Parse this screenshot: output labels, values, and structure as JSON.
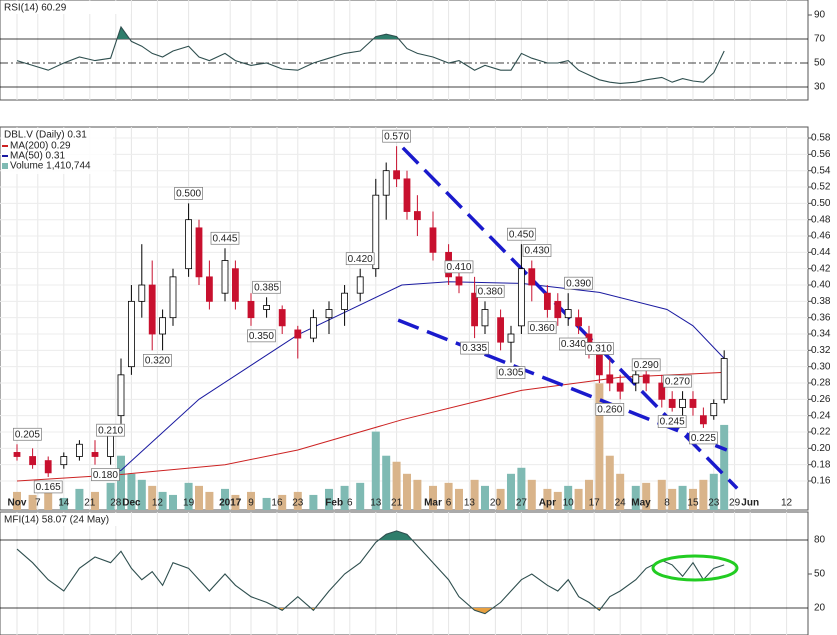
{
  "chart_data": [
    {
      "type": "line",
      "title": "RSI(14) 60.29",
      "color": "#2f4f4f",
      "x": [
        0,
        3,
        6,
        9,
        12,
        15,
        18,
        20,
        22,
        24,
        26,
        28,
        30,
        33,
        35,
        37,
        40,
        42,
        45,
        48,
        51,
        54,
        57,
        60,
        63,
        66,
        69,
        71,
        73,
        75,
        77,
        80,
        83,
        85,
        88,
        90,
        93,
        95,
        97,
        99,
        102,
        104,
        106,
        108,
        110,
        112,
        114,
        116,
        119,
        121,
        124,
        126,
        128,
        130,
        132,
        134,
        136
      ],
      "values": [
        52,
        48,
        44,
        50,
        55,
        52,
        54,
        80,
        68,
        64,
        58,
        55,
        60,
        64,
        55,
        52,
        58,
        52,
        48,
        50,
        45,
        44,
        50,
        54,
        58,
        60,
        72,
        74,
        72,
        62,
        58,
        55,
        50,
        52,
        44,
        48,
        44,
        44,
        58,
        54,
        50,
        50,
        52,
        44,
        40,
        36,
        34,
        33,
        34,
        36,
        38,
        34,
        37,
        35,
        34,
        42,
        60
      ],
      "ylim": [
        19.2,
        102.5
      ],
      "yticks": [
        90,
        70,
        50,
        30
      ],
      "overbought": 70,
      "oversold": 30,
      "dashed_mid": true,
      "over_color": "#2e7d6b",
      "under_color": "#e8a040"
    },
    {
      "type": "candlestick",
      "title": "DBL.V (Daily) 0.31",
      "x": [
        0,
        3,
        6,
        9,
        12,
        15,
        18,
        20,
        22,
        24,
        26,
        28,
        30,
        33,
        35,
        37,
        40,
        42,
        45,
        48,
        51,
        54,
        57,
        60,
        63,
        66,
        69,
        71,
        73,
        75,
        77,
        80,
        83,
        85,
        88,
        90,
        93,
        95,
        97,
        99,
        102,
        104,
        106,
        108,
        110,
        112,
        114,
        116,
        119,
        121,
        124,
        126,
        128,
        130,
        132,
        134,
        136
      ],
      "open": [
        0.195,
        0.19,
        0.185,
        0.18,
        0.19,
        0.195,
        0.19,
        0.24,
        0.3,
        0.38,
        0.4,
        0.34,
        0.36,
        0.42,
        0.47,
        0.41,
        0.39,
        0.42,
        0.38,
        0.37,
        0.37,
        0.345,
        0.335,
        0.36,
        0.37,
        0.39,
        0.42,
        0.51,
        0.54,
        0.53,
        0.49,
        0.47,
        0.44,
        0.41,
        0.39,
        0.35,
        0.36,
        0.33,
        0.35,
        0.42,
        0.39,
        0.38,
        0.36,
        0.36,
        0.34,
        0.32,
        0.29,
        0.28,
        0.28,
        0.29,
        0.28,
        0.26,
        0.25,
        0.26,
        0.24,
        0.24,
        0.26
      ],
      "high": [
        0.205,
        0.2,
        0.19,
        0.195,
        0.21,
        0.21,
        0.22,
        0.31,
        0.4,
        0.45,
        0.43,
        0.37,
        0.42,
        0.5,
        0.48,
        0.43,
        0.445,
        0.43,
        0.39,
        0.385,
        0.375,
        0.35,
        0.37,
        0.38,
        0.4,
        0.42,
        0.53,
        0.55,
        0.57,
        0.54,
        0.51,
        0.49,
        0.45,
        0.42,
        0.41,
        0.38,
        0.37,
        0.35,
        0.45,
        0.43,
        0.4,
        0.39,
        0.39,
        0.37,
        0.35,
        0.33,
        0.31,
        0.29,
        0.3,
        0.3,
        0.29,
        0.27,
        0.27,
        0.27,
        0.25,
        0.26,
        0.32
      ],
      "low": [
        0.185,
        0.175,
        0.165,
        0.175,
        0.185,
        0.18,
        0.18,
        0.23,
        0.29,
        0.36,
        0.32,
        0.32,
        0.35,
        0.41,
        0.4,
        0.37,
        0.38,
        0.37,
        0.35,
        0.36,
        0.34,
        0.31,
        0.33,
        0.34,
        0.35,
        0.38,
        0.41,
        0.48,
        0.52,
        0.48,
        0.46,
        0.43,
        0.4,
        0.39,
        0.335,
        0.34,
        0.32,
        0.305,
        0.34,
        0.38,
        0.36,
        0.35,
        0.35,
        0.34,
        0.31,
        0.28,
        0.27,
        0.26,
        0.27,
        0.27,
        0.25,
        0.245,
        0.24,
        0.24,
        0.225,
        0.235,
        0.255
      ],
      "close": [
        0.19,
        0.18,
        0.17,
        0.19,
        0.205,
        0.19,
        0.215,
        0.29,
        0.38,
        0.4,
        0.34,
        0.36,
        0.41,
        0.48,
        0.41,
        0.38,
        0.43,
        0.38,
        0.36,
        0.375,
        0.35,
        0.335,
        0.36,
        0.37,
        0.39,
        0.41,
        0.51,
        0.54,
        0.53,
        0.49,
        0.48,
        0.44,
        0.41,
        0.4,
        0.35,
        0.37,
        0.33,
        0.34,
        0.42,
        0.4,
        0.37,
        0.36,
        0.37,
        0.35,
        0.32,
        0.29,
        0.28,
        0.27,
        0.29,
        0.28,
        0.26,
        0.25,
        0.26,
        0.25,
        0.23,
        0.255,
        0.31
      ],
      "up_color": "#000000",
      "down_color": "#c8102e",
      "series": [
        {
          "name": "MA(200) 0.29",
          "color": "#cc2222",
          "x": [
            0,
            20,
            40,
            54,
            74,
            97,
            116,
            136
          ],
          "values": [
            0.16,
            0.168,
            0.18,
            0.198,
            0.235,
            0.271,
            0.287,
            0.293
          ]
        },
        {
          "name": "MA(50) 0.31",
          "color": "#1a1aa0",
          "x": [
            16,
            20,
            35,
            54,
            74,
            83,
            97,
            112,
            125,
            130,
            136
          ],
          "values": [
            0.167,
            0.173,
            0.26,
            0.339,
            0.4,
            0.404,
            0.402,
            0.391,
            0.37,
            0.35,
            0.31
          ]
        }
      ],
      "volume": {
        "name": "Volume 1,410,744",
        "lim": [
          0,
          6350000
        ],
        "up_color": "#7fbab3",
        "down_color": "#d9b48a",
        "values": [
          300000,
          250000,
          400000,
          200000,
          350000,
          300000,
          450000,
          900000,
          600000,
          500000,
          400000,
          300000,
          250000,
          450000,
          400000,
          300000,
          350000,
          250000,
          300000,
          200000,
          250000,
          300000,
          250000,
          350000,
          400000,
          450000,
          1300000,
          900000,
          800000,
          600000,
          500000,
          400000,
          450000,
          350000,
          500000,
          400000,
          350000,
          600000,
          700000,
          500000,
          350000,
          300000,
          400000,
          350000,
          500000,
          2100000,
          900000,
          600000,
          400000,
          450000,
          500000,
          350000,
          400000,
          350000,
          500000,
          600000,
          1410744
        ]
      },
      "annotations": [
        {
          "x": 2,
          "value": 0.205,
          "label": "0.205",
          "pos": "above"
        },
        {
          "x": 6,
          "value": 0.165,
          "label": "0.165",
          "pos": "below"
        },
        {
          "x": 18,
          "value": 0.21,
          "label": "0.210",
          "pos": "above"
        },
        {
          "x": 17,
          "value": 0.18,
          "label": "0.180",
          "pos": "below"
        },
        {
          "x": 27,
          "value": 0.32,
          "label": "0.320",
          "pos": "below"
        },
        {
          "x": 33,
          "value": 0.5,
          "label": "0.500",
          "pos": "above"
        },
        {
          "x": 40,
          "value": 0.445,
          "label": "0.445",
          "pos": "above"
        },
        {
          "x": 47,
          "value": 0.35,
          "label": "0.350",
          "pos": "below"
        },
        {
          "x": 48,
          "value": 0.385,
          "label": "0.385",
          "pos": "above"
        },
        {
          "x": 66,
          "value": 0.42,
          "label": "0.420",
          "pos": "above"
        },
        {
          "x": 73,
          "value": 0.57,
          "label": "0.570",
          "pos": "above"
        },
        {
          "x": 85,
          "value": 0.41,
          "label": "0.410",
          "pos": "above"
        },
        {
          "x": 88,
          "value": 0.335,
          "label": "0.335",
          "pos": "below"
        },
        {
          "x": 91,
          "value": 0.38,
          "label": "0.380",
          "pos": "above"
        },
        {
          "x": 95,
          "value": 0.305,
          "label": "0.305",
          "pos": "below"
        },
        {
          "x": 97,
          "value": 0.45,
          "label": "0.450",
          "pos": "above"
        },
        {
          "x": 100,
          "value": 0.43,
          "label": "0.430",
          "pos": "above"
        },
        {
          "x": 101,
          "value": 0.36,
          "label": "0.360",
          "pos": "below"
        },
        {
          "x": 107,
          "value": 0.34,
          "label": "0.340",
          "pos": "below"
        },
        {
          "x": 108,
          "value": 0.39,
          "label": "0.390",
          "pos": "above"
        },
        {
          "x": 112,
          "value": 0.31,
          "label": "0.310",
          "pos": "above"
        },
        {
          "x": 114,
          "value": 0.26,
          "label": "0.260",
          "pos": "below"
        },
        {
          "x": 121,
          "value": 0.29,
          "label": "0.290",
          "pos": "above"
        },
        {
          "x": 127,
          "value": 0.27,
          "label": "0.270",
          "pos": "above"
        },
        {
          "x": 126,
          "value": 0.245,
          "label": "0.245",
          "pos": "below"
        },
        {
          "x": 132,
          "value": 0.225,
          "label": "0.225",
          "pos": "below"
        }
      ],
      "trendlines": [
        {
          "x": [
            74.2,
            138.5
          ],
          "y": [
            0.568,
            0.151
          ]
        },
        {
          "x": [
            73.3,
            136.5
          ],
          "y": [
            0.357,
            0.198
          ]
        }
      ],
      "trend_color": "#1a1acc",
      "ylim": [
        0.1245,
        0.5935
      ],
      "yticks": [
        0.16,
        0.18,
        {
          "value": 0.2,
          "label": "0.20"
        },
        0.22,
        0.24,
        0.26,
        0.28,
        {
          "value": 0.3,
          "label": "0.30"
        },
        0.32,
        0.34,
        0.36,
        0.38,
        {
          "value": 0.4,
          "label": "0.40"
        },
        0.42,
        0.44,
        0.46,
        0.48,
        {
          "value": 0.5,
          "label": "0.50"
        },
        0.52,
        0.54,
        0.56,
        0.58
      ],
      "xlim": [
        -3.27,
        152.12
      ],
      "xticks": [
        {
          "value": 0,
          "label": "Nov"
        },
        {
          "value": 4,
          "label": "7"
        },
        {
          "value": 9,
          "label": "14"
        },
        {
          "value": 14,
          "label": "21"
        },
        {
          "value": 19,
          "label": "28"
        },
        {
          "value": 22,
          "label": "Dec"
        },
        {
          "value": 27,
          "label": "12"
        },
        {
          "value": 33,
          "label": "19"
        },
        {
          "value": 41,
          "label": "2017"
        },
        {
          "value": 45,
          "label": "9"
        },
        {
          "value": 50,
          "label": "16"
        },
        {
          "value": 54,
          "label": "23"
        },
        {
          "value": 61,
          "label": "Feb"
        },
        {
          "value": 64,
          "label": "6"
        },
        {
          "value": 69,
          "label": "13"
        },
        {
          "value": 73,
          "label": "21"
        },
        {
          "value": 80,
          "label": "Mar"
        },
        {
          "value": 83,
          "label": "6"
        },
        {
          "value": 87,
          "label": "13"
        },
        {
          "value": 92,
          "label": "20"
        },
        {
          "value": 97,
          "label": "27"
        },
        {
          "value": 102,
          "label": "Apr"
        },
        {
          "value": 106,
          "label": "10"
        },
        {
          "value": 111,
          "label": "17"
        },
        {
          "value": 116,
          "label": "24"
        },
        {
          "value": 120,
          "label": "May"
        },
        {
          "value": 125,
          "label": "8"
        },
        {
          "value": 130,
          "label": "15"
        },
        {
          "value": 134,
          "label": "23"
        },
        {
          "value": 138,
          "label": "29"
        },
        {
          "value": 141,
          "label": "Jun"
        },
        {
          "value": 148,
          "label": "12"
        }
      ],
      "grid": true
    },
    {
      "type": "line",
      "title": "MFI(14) 58.07 (24 May)",
      "color": "#2f4f4f",
      "x": [
        0,
        3,
        6,
        9,
        12,
        15,
        18,
        20,
        22,
        24,
        26,
        28,
        30,
        33,
        35,
        37,
        40,
        42,
        45,
        48,
        51,
        54,
        57,
        60,
        63,
        66,
        69,
        71,
        73,
        75,
        77,
        80,
        83,
        85,
        88,
        90,
        93,
        95,
        97,
        99,
        102,
        104,
        106,
        108,
        110,
        112,
        114,
        116,
        119,
        121,
        124,
        126,
        128,
        130,
        132,
        134,
        136
      ],
      "values": [
        72,
        60,
        45,
        35,
        55,
        65,
        60,
        70,
        55,
        45,
        52,
        40,
        60,
        55,
        45,
        35,
        50,
        40,
        30,
        25,
        18,
        30,
        18,
        35,
        50,
        60,
        78,
        85,
        88,
        85,
        75,
        60,
        45,
        30,
        18,
        15,
        25,
        35,
        45,
        50,
        40,
        35,
        45,
        30,
        25,
        18,
        30,
        35,
        45,
        55,
        62,
        58,
        48,
        60,
        45,
        55,
        58
      ],
      "ylim": [
        -3.8,
        104.7
      ],
      "yticks": [
        80,
        50,
        20
      ],
      "overbought": 80,
      "oversold": 20,
      "dashed_mid": false,
      "over_color": "#2e7d6b",
      "under_color": "#e8a040"
    }
  ]
}
